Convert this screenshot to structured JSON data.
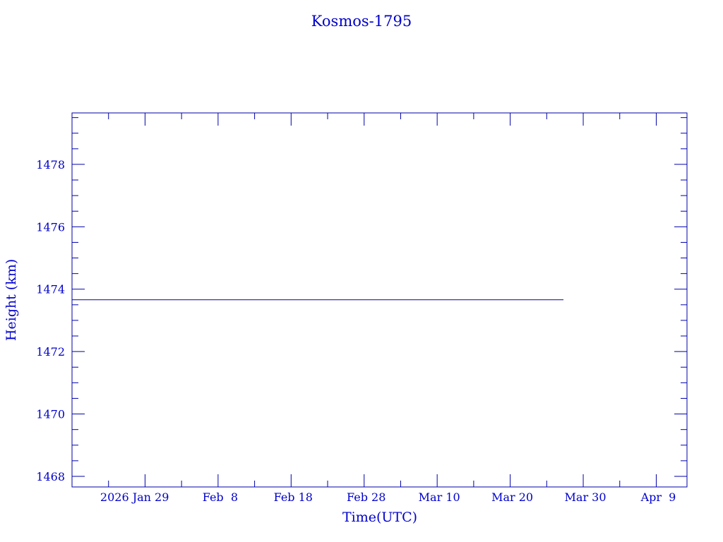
{
  "chart_data": {
    "type": "line",
    "title": "Kosmos-1795",
    "xlabel": "Time(UTC)",
    "ylabel": "Height (km)",
    "xlim": [
      "2026-01-19T00:00",
      "2026-04-13T05:00"
    ],
    "ylim": [
      1467.66,
      1479.65
    ],
    "x_ticks": [
      {
        "date": "2026-01-29",
        "label": "2026 Jan 29"
      },
      {
        "date": "2026-02-08",
        "label": "Feb  8"
      },
      {
        "date": "2026-02-18",
        "label": "Feb 18"
      },
      {
        "date": "2026-02-28",
        "label": "Feb 28"
      },
      {
        "date": "2026-03-10",
        "label": "Mar 10"
      },
      {
        "date": "2026-03-20",
        "label": "Mar 20"
      },
      {
        "date": "2026-03-30",
        "label": "Mar 30"
      },
      {
        "date": "2026-04-09",
        "label": "Apr  9"
      }
    ],
    "y_ticks": [
      1468,
      1470,
      1472,
      1474,
      1476,
      1478
    ],
    "y_minor_step": 0.5,
    "x_minor_step_days": 5,
    "grid": false,
    "series": [
      {
        "x": [
          "2026-01-19T00:00",
          "2026-03-27T07:00"
        ],
        "y": [
          1473.66,
          1473.66
        ]
      }
    ],
    "colors": {
      "axis": "#0000aa",
      "text": "#0000cc",
      "line": "#000099"
    }
  }
}
